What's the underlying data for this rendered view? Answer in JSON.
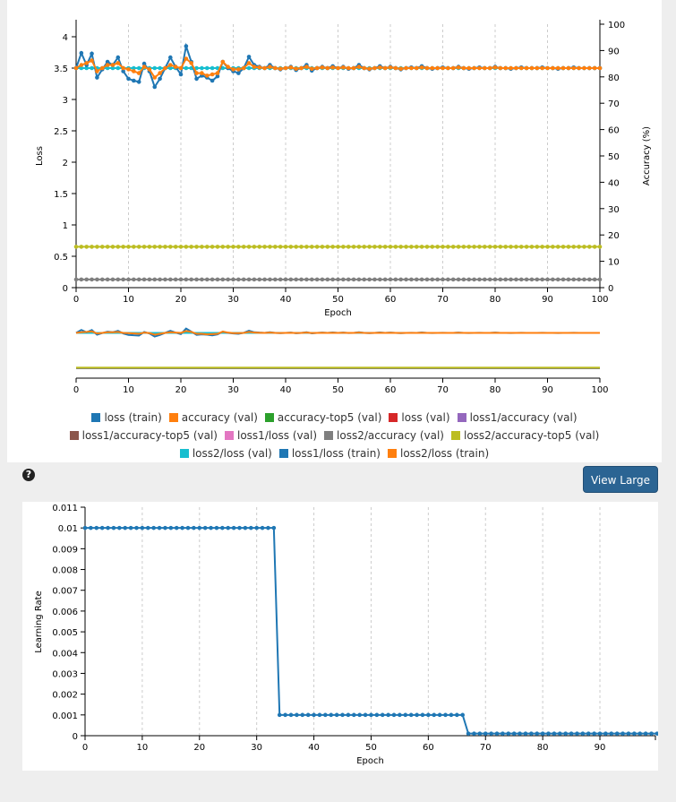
{
  "help_icon": "question-circle-icon",
  "view_large_label": "View Large",
  "chart_data": [
    {
      "type": "line",
      "xlabel": "Epoch",
      "ylabel_left": "Loss",
      "ylabel_right": "Accuracy (%)",
      "xlim": [
        0,
        100
      ],
      "ylim_left": [
        0,
        4.2
      ],
      "ylim_right": [
        0,
        100
      ],
      "xticks": [
        0,
        10,
        20,
        30,
        40,
        50,
        60,
        70,
        80,
        90,
        100
      ],
      "yticks_left": [
        0,
        0.5,
        1,
        1.5,
        2,
        2.5,
        3,
        3.5,
        4
      ],
      "yticks_right": [
        0,
        10,
        20,
        30,
        40,
        50,
        60,
        70,
        80,
        90,
        100
      ],
      "grid": "vertical dashed",
      "legend_placement": "bottom",
      "legend": [
        {
          "name": "loss (train)",
          "color": "#1f77b4"
        },
        {
          "name": "accuracy (val)",
          "color": "#ff7f0e"
        },
        {
          "name": "accuracy-top5 (val)",
          "color": "#2ca02c"
        },
        {
          "name": "loss (val)",
          "color": "#d62728"
        },
        {
          "name": "loss1/accuracy (val)",
          "color": "#9467bd"
        },
        {
          "name": "loss1/accuracy-top5 (val)",
          "color": "#8c564b"
        },
        {
          "name": "loss1/loss (val)",
          "color": "#e377c2"
        },
        {
          "name": "loss2/accuracy (val)",
          "color": "#7f7f7f"
        },
        {
          "name": "loss2/accuracy-top5 (val)",
          "color": "#bcbd22"
        },
        {
          "name": "loss2/loss (val)",
          "color": "#17becf"
        },
        {
          "name": "loss1/loss (train)",
          "color": "#1f77b4"
        },
        {
          "name": "loss2/loss (train)",
          "color": "#ff7f0e"
        }
      ],
      "series": [
        {
          "name": "loss2/accuracy (val)",
          "axis": "right",
          "color": "#7f7f7f",
          "values": [
            3.1,
            3.1,
            3.1,
            3.1,
            3.1,
            3.1,
            3.1,
            3.1,
            3.1,
            3.1,
            3.1,
            3.1,
            3.1,
            3.1,
            3.1,
            3.1,
            3.1,
            3.1,
            3.1,
            3.1,
            3.1,
            3.1,
            3.1,
            3.1,
            3.1,
            3.1,
            3.1,
            3.1,
            3.1,
            3.1,
            3.1,
            3.1,
            3.1,
            3.1,
            3.1,
            3.1,
            3.1,
            3.1,
            3.1,
            3.1,
            3.1,
            3.1,
            3.1,
            3.1,
            3.1,
            3.1,
            3.1,
            3.1,
            3.1,
            3.1,
            3.1,
            3.1,
            3.1,
            3.1,
            3.1,
            3.1,
            3.1,
            3.1,
            3.1,
            3.1,
            3.1,
            3.1,
            3.1,
            3.1,
            3.1,
            3.1,
            3.1,
            3.1,
            3.1,
            3.1,
            3.1,
            3.1,
            3.1,
            3.1,
            3.1,
            3.1,
            3.1,
            3.1,
            3.1,
            3.1,
            3.1,
            3.1,
            3.1,
            3.1,
            3.1,
            3.1,
            3.1,
            3.1,
            3.1,
            3.1,
            3.1,
            3.1,
            3.1,
            3.1,
            3.1,
            3.1,
            3.1,
            3.1,
            3.1,
            3.1,
            3.1
          ]
        },
        {
          "name": "loss2/accuracy-top5 (val)",
          "axis": "right",
          "color": "#bcbd22",
          "values": [
            15.5,
            15.5,
            15.5,
            15.5,
            15.5,
            15.5,
            15.5,
            15.5,
            15.5,
            15.5,
            15.5,
            15.5,
            15.5,
            15.5,
            15.5,
            15.5,
            15.5,
            15.5,
            15.5,
            15.5,
            15.5,
            15.5,
            15.5,
            15.5,
            15.5,
            15.5,
            15.5,
            15.5,
            15.5,
            15.5,
            15.5,
            15.5,
            15.5,
            15.5,
            15.5,
            15.5,
            15.5,
            15.5,
            15.5,
            15.5,
            15.5,
            15.5,
            15.5,
            15.5,
            15.5,
            15.5,
            15.5,
            15.5,
            15.5,
            15.5,
            15.5,
            15.5,
            15.5,
            15.5,
            15.5,
            15.5,
            15.5,
            15.5,
            15.5,
            15.5,
            15.5,
            15.5,
            15.5,
            15.5,
            15.5,
            15.5,
            15.5,
            15.5,
            15.5,
            15.5,
            15.5,
            15.5,
            15.5,
            15.5,
            15.5,
            15.5,
            15.5,
            15.5,
            15.5,
            15.5,
            15.5,
            15.5,
            15.5,
            15.5,
            15.5,
            15.5,
            15.5,
            15.5,
            15.5,
            15.5,
            15.5,
            15.5,
            15.5,
            15.5,
            15.5,
            15.5,
            15.5,
            15.5,
            15.5,
            15.5,
            15.5
          ]
        },
        {
          "name": "loss2/loss (val)",
          "axis": "left",
          "color": "#17becf",
          "values": [
            3.5,
            3.5,
            3.5,
            3.5,
            3.5,
            3.5,
            3.5,
            3.5,
            3.5,
            3.5,
            3.5,
            3.5,
            3.5,
            3.5,
            3.5,
            3.5,
            3.5,
            3.5,
            3.5,
            3.5,
            3.5,
            3.5,
            3.5,
            3.5,
            3.5,
            3.5,
            3.5,
            3.5,
            3.5,
            3.5,
            3.5,
            3.5,
            3.5,
            3.5,
            3.5,
            3.5,
            3.5,
            3.5,
            3.5,
            3.5,
            3.5,
            3.5,
            3.5,
            3.5,
            3.5,
            3.5,
            3.5,
            3.5,
            3.5,
            3.5,
            3.5,
            3.5,
            3.5,
            3.5,
            3.5,
            3.5,
            3.5,
            3.5,
            3.5,
            3.5,
            3.5,
            3.5,
            3.5,
            3.5,
            3.5,
            3.5,
            3.5,
            3.5,
            3.5,
            3.5,
            3.5,
            3.5,
            3.5,
            3.5,
            3.5,
            3.5,
            3.5,
            3.5,
            3.5,
            3.5,
            3.5,
            3.5,
            3.5,
            3.5,
            3.5,
            3.5,
            3.5,
            3.5,
            3.5,
            3.5,
            3.5,
            3.5,
            3.5,
            3.5,
            3.5,
            3.5,
            3.5,
            3.5,
            3.5,
            3.5,
            3.5
          ]
        },
        {
          "name": "loss (train)",
          "axis": "left",
          "color": "#1f77b4",
          "values": [
            3.5,
            3.74,
            3.55,
            3.73,
            3.35,
            3.48,
            3.6,
            3.55,
            3.67,
            3.45,
            3.33,
            3.3,
            3.28,
            3.57,
            3.45,
            3.2,
            3.33,
            3.5,
            3.67,
            3.52,
            3.4,
            3.85,
            3.6,
            3.33,
            3.38,
            3.35,
            3.3,
            3.37,
            3.6,
            3.5,
            3.45,
            3.42,
            3.5,
            3.68,
            3.55,
            3.52,
            3.5,
            3.55,
            3.5,
            3.48,
            3.5,
            3.52,
            3.47,
            3.5,
            3.55,
            3.46,
            3.5,
            3.52,
            3.5,
            3.53,
            3.5,
            3.52,
            3.49,
            3.5,
            3.55,
            3.5,
            3.48,
            3.5,
            3.53,
            3.5,
            3.52,
            3.5,
            3.48,
            3.5,
            3.51,
            3.5,
            3.53,
            3.5,
            3.49,
            3.5,
            3.51,
            3.5,
            3.5,
            3.52,
            3.5,
            3.49,
            3.5,
            3.51,
            3.5,
            3.5,
            3.52,
            3.5,
            3.5,
            3.49,
            3.5,
            3.51,
            3.5,
            3.5,
            3.5,
            3.51,
            3.5,
            3.5,
            3.49,
            3.5,
            3.5,
            3.51,
            3.5,
            3.5,
            3.5,
            3.5,
            3.5
          ]
        },
        {
          "name": "loss2/loss (train)",
          "axis": "left",
          "color": "#ff7f0e",
          "values": [
            3.5,
            3.55,
            3.58,
            3.62,
            3.45,
            3.5,
            3.55,
            3.55,
            3.58,
            3.5,
            3.48,
            3.45,
            3.42,
            3.52,
            3.48,
            3.35,
            3.42,
            3.5,
            3.55,
            3.52,
            3.5,
            3.65,
            3.58,
            3.42,
            3.42,
            3.38,
            3.4,
            3.42,
            3.6,
            3.52,
            3.48,
            3.48,
            3.5,
            3.58,
            3.52,
            3.51,
            3.5,
            3.52,
            3.5,
            3.49,
            3.5,
            3.51,
            3.49,
            3.5,
            3.52,
            3.49,
            3.5,
            3.51,
            3.5,
            3.51,
            3.5,
            3.51,
            3.5,
            3.5,
            3.52,
            3.5,
            3.49,
            3.5,
            3.51,
            3.5,
            3.51,
            3.5,
            3.49,
            3.5,
            3.5,
            3.5,
            3.51,
            3.5,
            3.5,
            3.5,
            3.5,
            3.5,
            3.5,
            3.51,
            3.5,
            3.5,
            3.5,
            3.5,
            3.5,
            3.5,
            3.51,
            3.5,
            3.5,
            3.5,
            3.5,
            3.5,
            3.5,
            3.5,
            3.5,
            3.5,
            3.5,
            3.5,
            3.5,
            3.5,
            3.5,
            3.5,
            3.5,
            3.5,
            3.5,
            3.5,
            3.5
          ]
        }
      ]
    },
    {
      "type": "line",
      "xlabel": "Epoch",
      "ylabel": "Learning Rate",
      "xlim": [
        0,
        99.7
      ],
      "ylim": [
        0,
        0.011
      ],
      "xticks": [
        0,
        10,
        20,
        30,
        40,
        50,
        60,
        70,
        80,
        90
      ],
      "yticks": [
        0,
        0.001,
        0.002,
        0.003,
        0.004,
        0.005,
        0.006,
        0.007,
        0.008,
        0.009,
        0.01,
        0.011
      ],
      "grid": "vertical dashed",
      "series": [
        {
          "color": "#1f77b4",
          "values": [
            0.01,
            0.01,
            0.01,
            0.01,
            0.01,
            0.01,
            0.01,
            0.01,
            0.01,
            0.01,
            0.01,
            0.01,
            0.01,
            0.01,
            0.01,
            0.01,
            0.01,
            0.01,
            0.01,
            0.01,
            0.01,
            0.01,
            0.01,
            0.01,
            0.01,
            0.01,
            0.01,
            0.01,
            0.01,
            0.01,
            0.01,
            0.01,
            0.01,
            0.01,
            0.001,
            0.001,
            0.001,
            0.001,
            0.001,
            0.001,
            0.001,
            0.001,
            0.001,
            0.001,
            0.001,
            0.001,
            0.001,
            0.001,
            0.001,
            0.001,
            0.001,
            0.001,
            0.001,
            0.001,
            0.001,
            0.001,
            0.001,
            0.001,
            0.001,
            0.001,
            0.001,
            0.001,
            0.001,
            0.001,
            0.001,
            0.001,
            0.001,
            0.0001,
            0.0001,
            0.0001,
            0.0001,
            0.0001,
            0.0001,
            0.0001,
            0.0001,
            0.0001,
            0.0001,
            0.0001,
            0.0001,
            0.0001,
            0.0001,
            0.0001,
            0.0001,
            0.0001,
            0.0001,
            0.0001,
            0.0001,
            0.0001,
            0.0001,
            0.0001,
            0.0001,
            0.0001,
            0.0001,
            0.0001,
            0.0001,
            0.0001,
            0.0001,
            0.0001,
            0.0001,
            0.0001,
            0.0001
          ]
        }
      ]
    }
  ]
}
